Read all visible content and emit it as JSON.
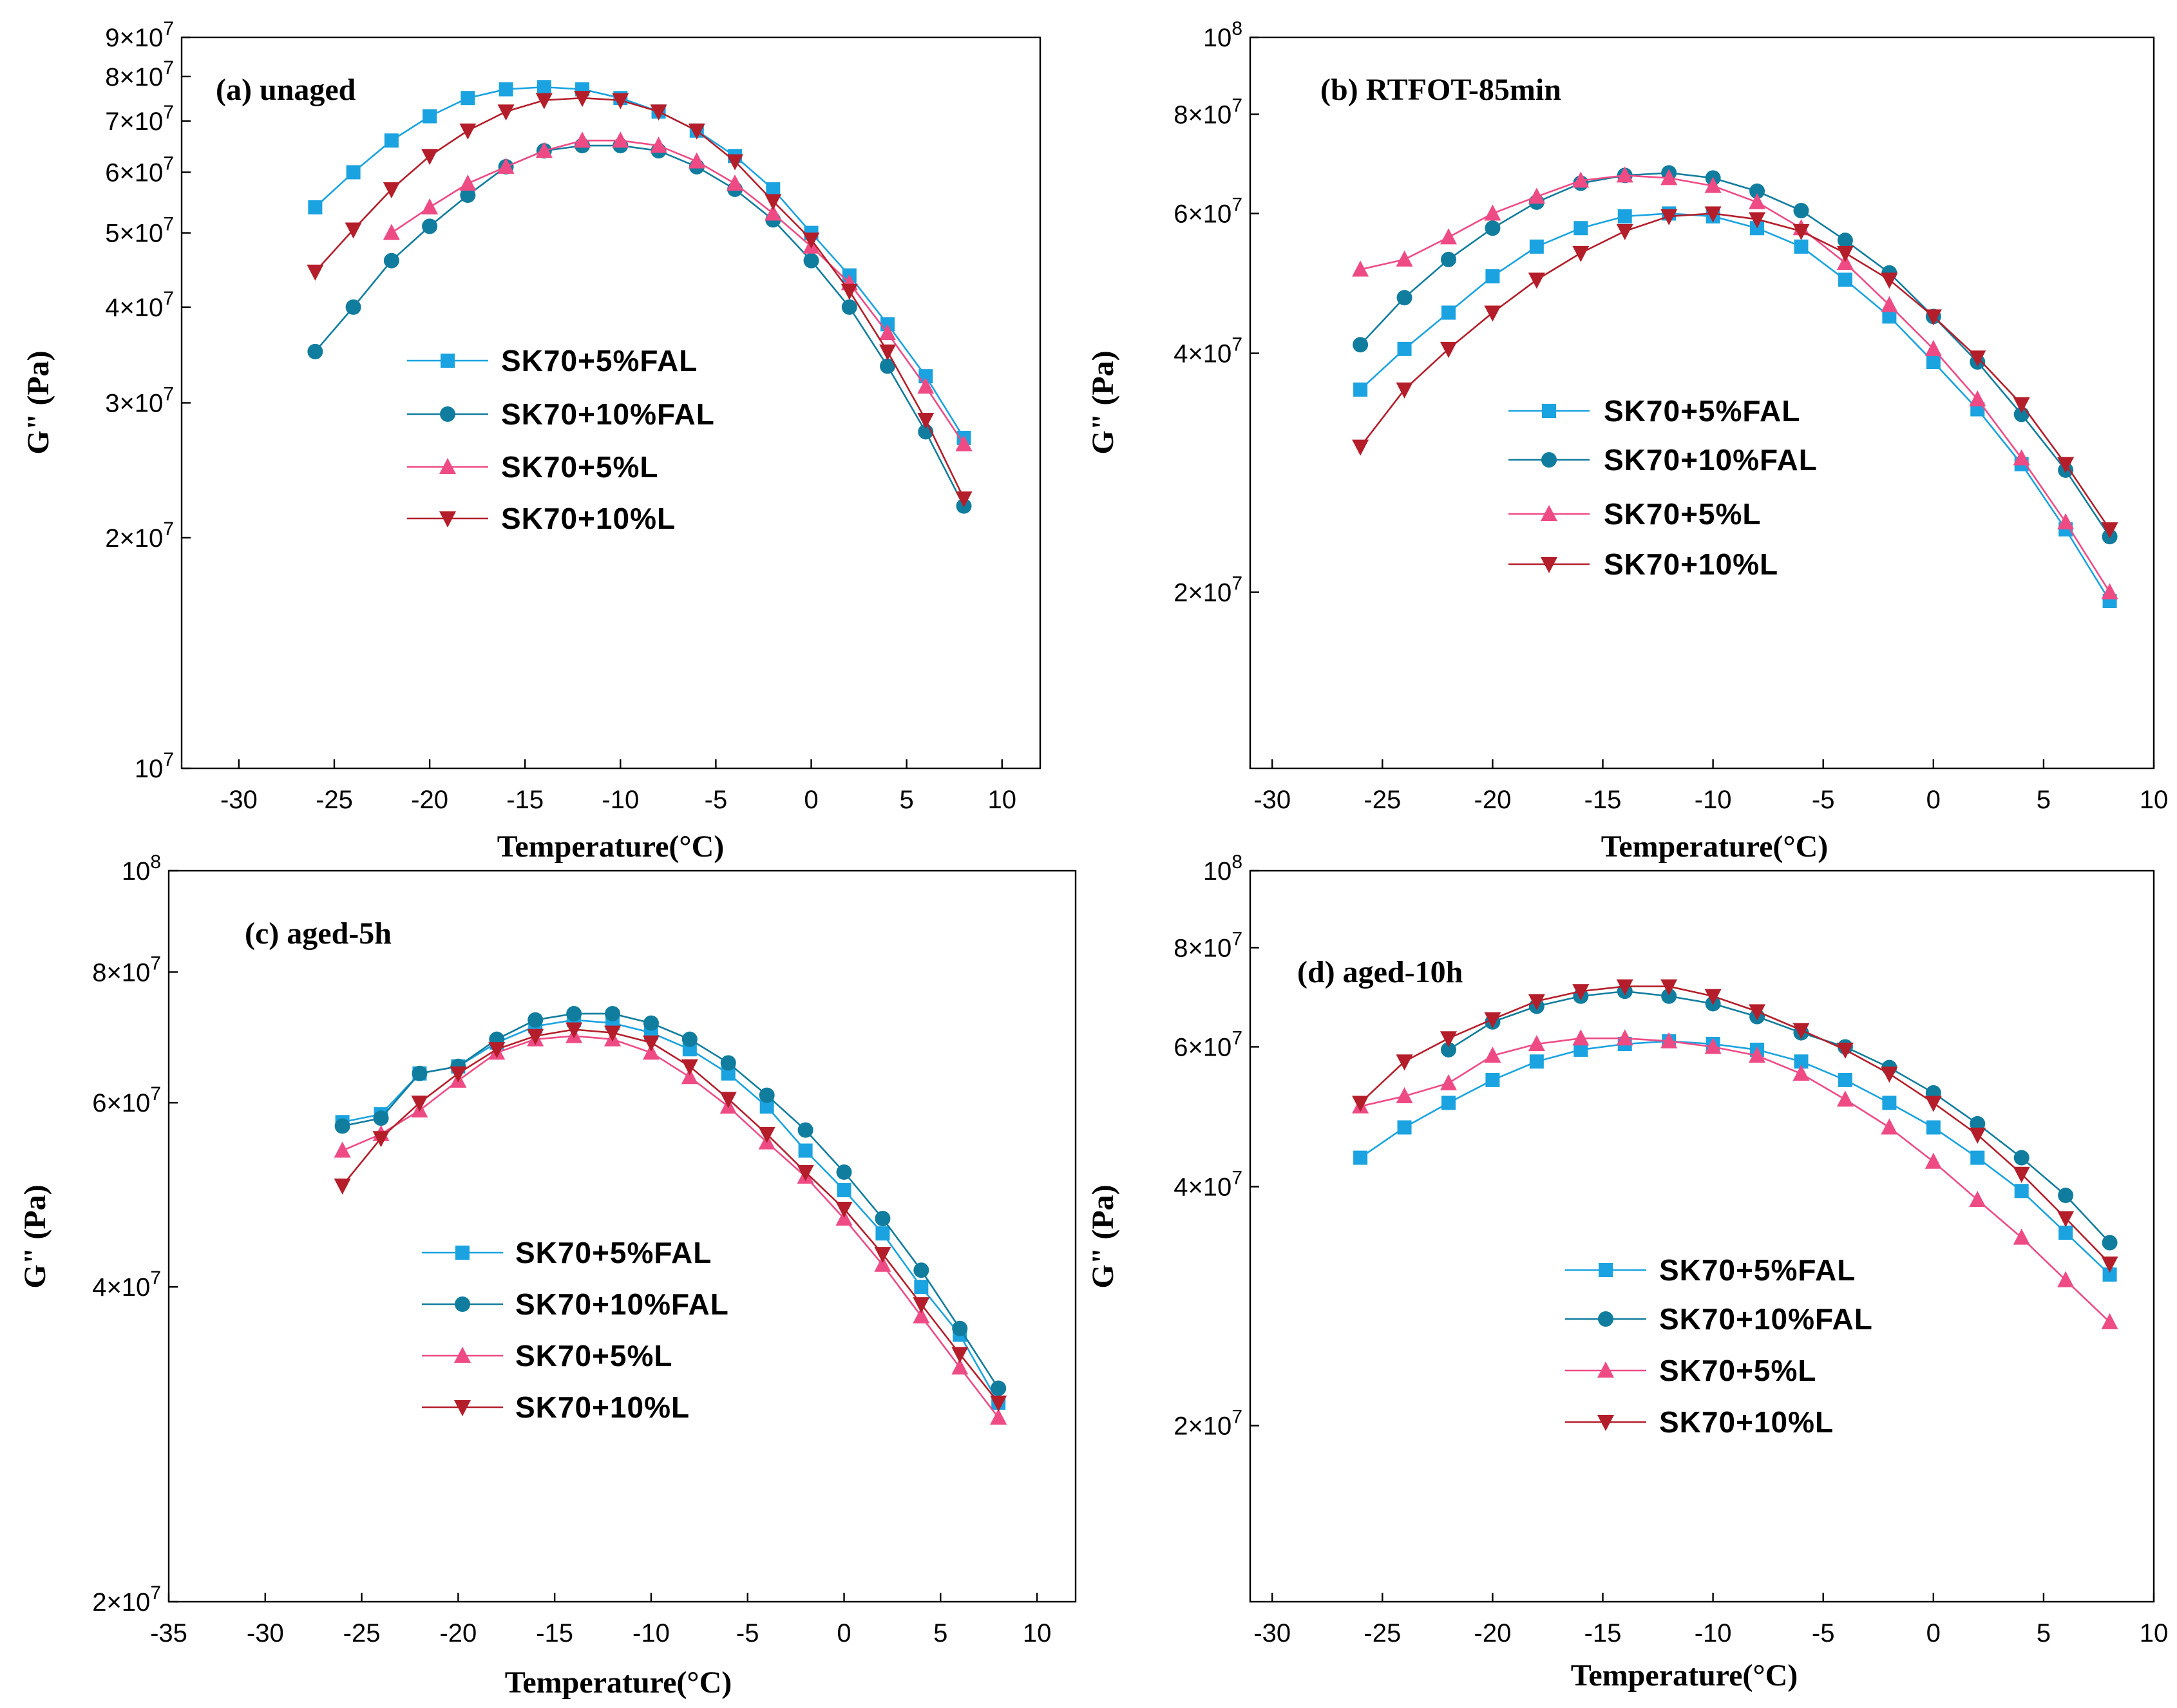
{
  "chart_data": [
    {
      "type": "line",
      "panel": "a",
      "title": "(a) unaged",
      "xlabel": "Temperature(°C)",
      "ylabel": "G\" (Pa)",
      "xlim": [
        -33,
        12
      ],
      "ylim": [
        10000000,
        90000000
      ],
      "yscale": "log",
      "xticks": [
        -30,
        -25,
        -20,
        -15,
        -10,
        -5,
        0,
        5,
        10
      ],
      "yticks": [
        {
          "value": 10000000,
          "label": "10⁷"
        },
        {
          "value": 20000000,
          "label": "2×10⁷"
        },
        {
          "value": 30000000,
          "label": "3×10⁷"
        },
        {
          "value": 40000000,
          "label": "4×10⁷"
        },
        {
          "value": 50000000,
          "label": "5×10⁷"
        },
        {
          "value": 60000000,
          "label": "6×10⁷"
        },
        {
          "value": 70000000,
          "label": "7×10⁷"
        },
        {
          "value": 80000000,
          "label": "8×10⁷"
        },
        {
          "value": 90000000,
          "label": "9×10⁷"
        }
      ],
      "legend_position": "center-right",
      "x": [
        -26,
        -24,
        -22,
        -20,
        -18,
        -16,
        -14,
        -12,
        -10,
        -8,
        -6,
        -4,
        -2,
        0,
        2,
        4,
        6,
        8
      ],
      "series": [
        {
          "name": "SK70+5%FAL",
          "color": "#1aa3e0",
          "marker": "square",
          "values": [
            54000000.0,
            60000000.0,
            66000000.0,
            71000000.0,
            75000000.0,
            77000000.0,
            77500000.0,
            77000000.0,
            75000000.0,
            72000000.0,
            68000000.0,
            63000000.0,
            57000000.0,
            50000000.0,
            44000000.0,
            38000000.0,
            32500000.0,
            27000000.0
          ]
        },
        {
          "name": "SK70+10%FAL",
          "color": "#117d9e",
          "marker": "circle",
          "values": [
            35000000.0,
            40000000.0,
            46000000.0,
            51000000.0,
            56000000.0,
            61000000.0,
            64000000.0,
            65000000.0,
            65000000.0,
            64000000.0,
            61000000.0,
            57000000.0,
            52000000.0,
            46000000.0,
            40000000.0,
            33500000.0,
            27500000.0,
            22000000.0
          ]
        },
        {
          "name": "SK70+5%L",
          "color": "#ee4b85",
          "marker": "triangle-up",
          "values": [
            null,
            null,
            50000000.0,
            54000000.0,
            58000000.0,
            61000000.0,
            64000000.0,
            66000000.0,
            66000000.0,
            65000000.0,
            62000000.0,
            58000000.0,
            53000000.0,
            48000000.0,
            43000000.0,
            37000000.0,
            31500000.0,
            26500000.0
          ]
        },
        {
          "name": "SK70+10%L",
          "color": "#b41e2a",
          "marker": "triangle-down",
          "values": [
            44500000.0,
            50500000.0,
            57000000.0,
            63000000.0,
            68000000.0,
            72000000.0,
            74500000.0,
            75000000.0,
            74500000.0,
            72000000.0,
            68000000.0,
            62000000.0,
            55000000.0,
            49000000.0,
            42000000.0,
            35000000.0,
            28500000.0,
            22500000.0
          ]
        }
      ]
    },
    {
      "type": "line",
      "panel": "b",
      "title": "(b) RTFOT-85min",
      "xlabel": "Temperature(°C)",
      "ylabel": "G\" (Pa)",
      "xlim": [
        -31,
        10
      ],
      "ylim": [
        12000000,
        100000000
      ],
      "yscale": "log",
      "xticks": [
        -30,
        -25,
        -20,
        -15,
        -10,
        -5,
        0,
        5,
        10
      ],
      "yticks": [
        {
          "value": 20000000,
          "label": "2×10⁷"
        },
        {
          "value": 40000000,
          "label": "4×10⁷"
        },
        {
          "value": 60000000,
          "label": "6×10⁷"
        },
        {
          "value": 80000000,
          "label": "8×10⁷"
        },
        {
          "value": 100000000,
          "label": "10⁸"
        }
      ],
      "legend_position": "lower-center",
      "x": [
        -26,
        -24,
        -22,
        -20,
        -18,
        -16,
        -14,
        -12,
        -10,
        -8,
        -6,
        -4,
        -2,
        0,
        2,
        4,
        6,
        8
      ],
      "series": [
        {
          "name": "SK70+5%FAL",
          "color": "#1aa3e0",
          "marker": "square",
          "values": [
            36000000.0,
            40500000.0,
            45000000.0,
            50000000.0,
            54500000.0,
            57500000.0,
            59500000.0,
            60000000.0,
            59500000.0,
            57500000.0,
            54500000.0,
            49500000.0,
            44500000.0,
            39000000.0,
            34000000.0,
            29000000.0,
            24000000.0,
            19500000.0
          ]
        },
        {
          "name": "SK70+10%FAL",
          "color": "#117d9e",
          "marker": "circle",
          "values": [
            41000000.0,
            47000000.0,
            52500000.0,
            57500000.0,
            62000000.0,
            65500000.0,
            67000000.0,
            67500000.0,
            66500000.0,
            64000000.0,
            60500000.0,
            55500000.0,
            50500000.0,
            44500000.0,
            39000000.0,
            33500000.0,
            28500000.0,
            23500000.0
          ]
        },
        {
          "name": "SK70+5%L",
          "color": "#ee4b85",
          "marker": "triangle-up",
          "values": [
            51000000.0,
            52500000.0,
            56000000.0,
            60000000.0,
            63000000.0,
            66000000.0,
            67000000.0,
            66500000.0,
            65000000.0,
            62000000.0,
            57500000.0,
            52000000.0,
            46000000.0,
            40500000.0,
            35000000.0,
            29500000.0,
            24500000.0,
            20000000.0
          ]
        },
        {
          "name": "SK70+10%L",
          "color": "#b41e2a",
          "marker": "triangle-down",
          "values": [
            30500000.0,
            36000000.0,
            40500000.0,
            45000000.0,
            49500000.0,
            53500000.0,
            57000000.0,
            59500000.0,
            60000000.0,
            59000000.0,
            57000000.0,
            53500000.0,
            49500000.0,
            44500000.0,
            39500000.0,
            34500000.0,
            29000000.0,
            24000000.0
          ]
        }
      ]
    },
    {
      "type": "line",
      "panel": "c",
      "title": "(c) aged-5h",
      "xlabel": "Temperature(°C)",
      "ylabel": "G\" (Pa)",
      "xlim": [
        -35,
        12
      ],
      "ylim": [
        20000000,
        100000000
      ],
      "yscale": "log",
      "xticks": [
        -35,
        -30,
        -25,
        -20,
        -15,
        -10,
        -5,
        0,
        5,
        10
      ],
      "yticks": [
        {
          "value": 20000000,
          "label": "2×10⁷"
        },
        {
          "value": 40000000,
          "label": "4×10⁷"
        },
        {
          "value": 60000000,
          "label": "6×10⁷"
        },
        {
          "value": 80000000,
          "label": "8×10⁷"
        },
        {
          "value": 100000000,
          "label": "10⁸"
        }
      ],
      "legend_position": "lower-center",
      "x": [
        -26,
        -24,
        -22,
        -20,
        -18,
        -16,
        -14,
        -12,
        -10,
        -8,
        -6,
        -4,
        -2,
        0,
        2,
        4,
        6,
        8
      ],
      "series": [
        {
          "name": "SK70+5%FAL",
          "color": "#1aa3e0",
          "marker": "square",
          "values": [
            57500000.0,
            58500000.0,
            64000000.0,
            65000000.0,
            68500000.0,
            71000000.0,
            72000000.0,
            71500000.0,
            70000000.0,
            67500000.0,
            64000000.0,
            59500000.0,
            54000000.0,
            49500000.0,
            45000000.0,
            40000000.0,
            36000000.0,
            31000000.0
          ]
        },
        {
          "name": "SK70+10%FAL",
          "color": "#117d9e",
          "marker": "circle",
          "values": [
            57000000.0,
            58000000.0,
            64000000.0,
            65000000.0,
            69000000.0,
            72000000.0,
            73000000.0,
            73000000.0,
            71500000.0,
            69000000.0,
            65500000.0,
            61000000.0,
            56500000.0,
            51500000.0,
            46500000.0,
            41500000.0,
            36500000.0,
            32000000.0
          ]
        },
        {
          "name": "SK70+5%L",
          "color": "#ee4b85",
          "marker": "triangle-up",
          "values": [
            54000000.0,
            56000000.0,
            59000000.0,
            63000000.0,
            67000000.0,
            69000000.0,
            69500000.0,
            69000000.0,
            67000000.0,
            63500000.0,
            59500000.0,
            55000000.0,
            51000000.0,
            46500000.0,
            42000000.0,
            37500000.0,
            33500000.0,
            30000000.0
          ]
        },
        {
          "name": "SK70+10%L",
          "color": "#b41e2a",
          "marker": "triangle-down",
          "values": [
            50000000.0,
            55500000.0,
            60000000.0,
            64000000.0,
            67500000.0,
            69500000.0,
            70500000.0,
            70000000.0,
            68500000.0,
            65000000.0,
            60500000.0,
            56000000.0,
            51500000.0,
            47500000.0,
            43000000.0,
            38500000.0,
            34500000.0,
            31000000.0
          ]
        }
      ]
    },
    {
      "type": "line",
      "panel": "d",
      "title": "(d) aged-10h",
      "xlabel": "Temperature(°C)",
      "ylabel": "G\" (Pa)",
      "xlim": [
        -31,
        10
      ],
      "ylim": [
        12000000,
        100000000
      ],
      "yscale": "log",
      "xticks": [
        -30,
        -25,
        -20,
        -15,
        -10,
        -5,
        0,
        5,
        10
      ],
      "yticks": [
        {
          "value": 20000000,
          "label": "2×10⁷"
        },
        {
          "value": 40000000,
          "label": "4×10⁷"
        },
        {
          "value": 60000000,
          "label": "6×10⁷"
        },
        {
          "value": 80000000,
          "label": "8×10⁷"
        },
        {
          "value": 100000000,
          "label": "10⁸"
        }
      ],
      "legend_position": "lower-right",
      "x": [
        -26,
        -24,
        -22,
        -20,
        -18,
        -16,
        -14,
        -12,
        -10,
        -8,
        -6,
        -4,
        -2,
        0,
        2,
        4,
        6,
        8
      ],
      "series": [
        {
          "name": "SK70+5%FAL",
          "color": "#1aa3e0",
          "marker": "square",
          "values": [
            43500000.0,
            47500000.0,
            51000000.0,
            54500000.0,
            57500000.0,
            59500000.0,
            60500000.0,
            61000000.0,
            60500000.0,
            59500000.0,
            57500000.0,
            54500000.0,
            51000000.0,
            47500000.0,
            43500000.0,
            39500000.0,
            35000000.0,
            31000000.0
          ]
        },
        {
          "name": "SK70+10%FAL",
          "color": "#117d9e",
          "marker": "circle",
          "values": [
            null,
            null,
            59500000.0,
            64500000.0,
            67500000.0,
            69500000.0,
            70500000.0,
            69500000.0,
            68000000.0,
            65500000.0,
            62500000.0,
            60000000.0,
            56500000.0,
            52500000.0,
            48000000.0,
            43500000.0,
            39000000.0,
            34000000.0
          ]
        },
        {
          "name": "SK70+5%L",
          "color": "#ee4b85",
          "marker": "triangle-up",
          "values": [
            50500000.0,
            52000000.0,
            54000000.0,
            58500000.0,
            60500000.0,
            61500000.0,
            61500000.0,
            61000000.0,
            60000000.0,
            58500000.0,
            55500000.0,
            51500000.0,
            47500000.0,
            43000000.0,
            38500000.0,
            34500000.0,
            30500000.0,
            27000000.0
          ]
        },
        {
          "name": "SK70+10%L",
          "color": "#b41e2a",
          "marker": "triangle-down",
          "values": [
            51000000.0,
            57500000.0,
            61500000.0,
            65000000.0,
            68500000.0,
            70500000.0,
            71500000.0,
            71500000.0,
            69500000.0,
            66500000.0,
            63000000.0,
            59500000.0,
            55500000.0,
            51000000.0,
            46500000.0,
            41500000.0,
            36500000.0,
            32000000.0
          ]
        }
      ]
    }
  ]
}
